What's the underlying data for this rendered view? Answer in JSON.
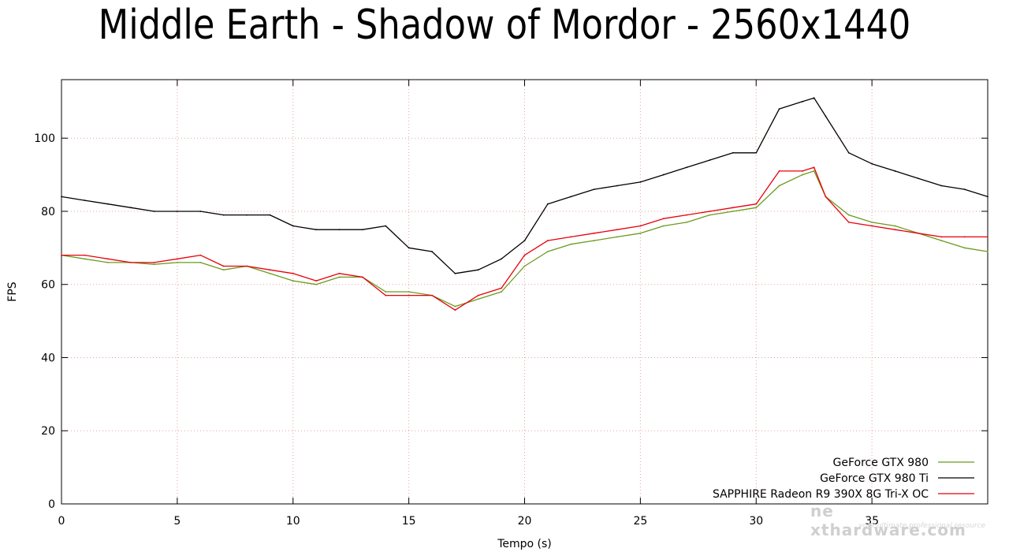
{
  "page": {
    "title": "Middle Earth - Shadow of Mordor - 2560x1440"
  },
  "chart_data": {
    "type": "line",
    "title": "Middle Earth - Shadow of Mordor - 2560x1440",
    "xlabel": "Tempo (s)",
    "ylabel": "FPS",
    "xlim": [
      0,
      40
    ],
    "ylim": [
      0,
      116
    ],
    "xticks": [
      0,
      5,
      10,
      15,
      20,
      25,
      30,
      35
    ],
    "yticks": [
      0,
      20,
      40,
      60,
      80,
      100
    ],
    "grid": true,
    "legend_position": "bottom-right",
    "series": [
      {
        "name": "GeForce GTX 980",
        "color": "#6b9a1f",
        "x": [
          0,
          1,
          2,
          3,
          4,
          5,
          6,
          7,
          8,
          9,
          10,
          11,
          12,
          13,
          14,
          15,
          16,
          17,
          18,
          19,
          20,
          21,
          22,
          23,
          24,
          25,
          26,
          27,
          28,
          29,
          30,
          31,
          32,
          32.5,
          33,
          34,
          35,
          36,
          37,
          38,
          39,
          40
        ],
        "y": [
          68,
          67,
          66,
          66,
          65.5,
          66,
          66,
          64,
          65,
          63,
          61,
          60,
          62,
          62,
          58,
          58,
          57,
          54,
          56,
          58,
          65,
          69,
          71,
          72,
          73,
          74,
          76,
          77,
          79,
          80,
          81,
          87,
          90,
          91,
          84,
          79,
          77,
          76,
          74,
          72,
          70,
          69
        ]
      },
      {
        "name": "GeForce GTX 980 Ti",
        "color": "#000000",
        "x": [
          0,
          1,
          2,
          3,
          4,
          5,
          6,
          7,
          8,
          9,
          10,
          11,
          12,
          13,
          14,
          15,
          16,
          17,
          18,
          19,
          20,
          21,
          22,
          23,
          24,
          25,
          26,
          27,
          28,
          29,
          30,
          31,
          32,
          32.5,
          33,
          34,
          35,
          36,
          37,
          38,
          39,
          40
        ],
        "y": [
          84,
          83,
          82,
          81,
          80,
          80,
          80,
          79,
          79,
          79,
          76,
          75,
          75,
          75,
          76,
          70,
          69,
          63,
          64,
          67,
          72,
          82,
          84,
          86,
          87,
          88,
          90,
          92,
          94,
          96,
          96,
          108,
          110,
          111,
          106,
          96,
          93,
          91,
          89,
          87,
          86,
          84
        ]
      },
      {
        "name": "SAPPHIRE Radeon R9 390X 8G Tri-X OC",
        "color": "#e8000b",
        "x": [
          0,
          1,
          2,
          3,
          4,
          5,
          6,
          7,
          8,
          9,
          10,
          11,
          12,
          13,
          14,
          15,
          16,
          17,
          18,
          19,
          20,
          21,
          22,
          23,
          24,
          25,
          26,
          27,
          28,
          29,
          30,
          31,
          32,
          32.5,
          33,
          34,
          35,
          36,
          37,
          38,
          39,
          40
        ],
        "y": [
          68,
          68,
          67,
          66,
          66,
          67,
          68,
          65,
          65,
          64,
          63,
          61,
          63,
          62,
          57,
          57,
          57,
          53,
          57,
          59,
          68,
          72,
          73,
          74,
          75,
          76,
          78,
          79,
          80,
          81,
          82,
          91,
          91,
          92,
          84,
          77,
          76,
          75,
          74,
          73,
          73,
          73
        ]
      }
    ]
  }
}
